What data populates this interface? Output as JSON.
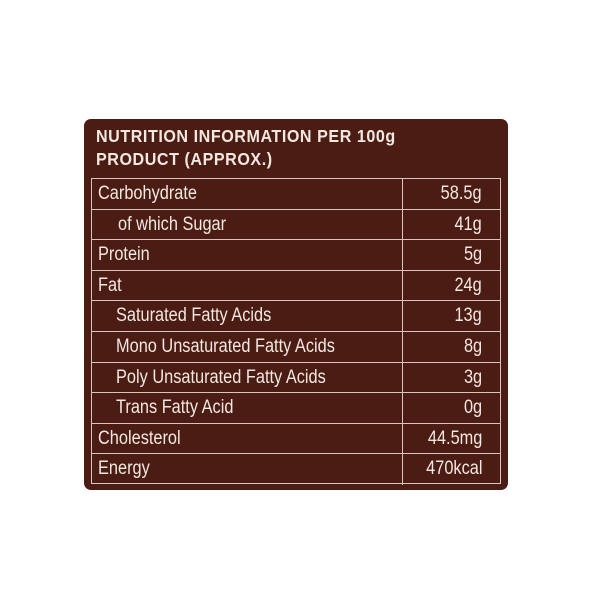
{
  "label": {
    "heading_line1": "NUTRITION INFORMATION PER 100g",
    "heading_line2": "PRODUCT (APPROX.)",
    "rows": [
      {
        "name": "Carbohydrate",
        "value": "58.5g"
      },
      {
        "name": "of which Sugar",
        "value": "41g"
      },
      {
        "name": "Protein",
        "value": "5g"
      },
      {
        "name": "Fat",
        "value": "24g"
      },
      {
        "name": "Saturated Fatty Acids",
        "value": "13g"
      },
      {
        "name": "Mono Unsaturated Fatty Acids",
        "value": "8g"
      },
      {
        "name": "Poly Unsaturated Fatty Acids",
        "value": "3g"
      },
      {
        "name": "Trans Fatty Acid",
        "value": "0g"
      },
      {
        "name": "Cholesterol",
        "value": "44.5mg"
      },
      {
        "name": "Energy",
        "value": "470kcal"
      }
    ],
    "colors": {
      "panel": "#4a1c14",
      "text": "#f2e8e0",
      "rule": "#d8c6b8"
    }
  }
}
